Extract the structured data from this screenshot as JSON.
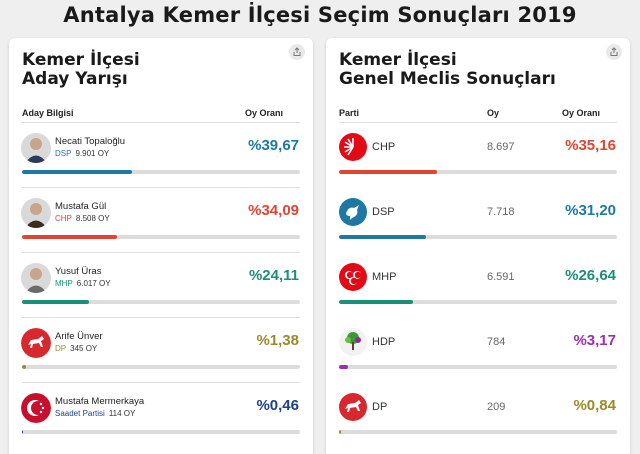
{
  "page": {
    "title": "Antalya Kemer İlçesi Seçim Sonuçları 2019"
  },
  "left_card": {
    "title_line1": "Kemer İlçesi",
    "title_line2": "Aday Yarışı",
    "col_candidate": "Aday Bilgisi",
    "col_share": "Oy Oranı",
    "share_icon": "share-icon",
    "candidates": [
      {
        "name": "Necati Topaloğlu",
        "party": "DSP",
        "votes": "9.901 OY",
        "pct": "%39,67",
        "share": 39.67,
        "color": "#1d78a4",
        "party_color": "#1d78a4"
      },
      {
        "name": "Mustafa Gül",
        "party": "CHP",
        "votes": "8.508 OY",
        "pct": "%34,09",
        "share": 34.09,
        "color": "#e04433",
        "party_color": "#e04433"
      },
      {
        "name": "Yusuf Üras",
        "party": "MHP",
        "votes": "6.017 OY",
        "pct": "%24,11",
        "share": 24.11,
        "color": "#1a8f7a",
        "party_color": "#1a8f7a"
      },
      {
        "name": "Arife Ünver",
        "party": "DP",
        "votes": "345 OY",
        "pct": "%1,38",
        "share": 1.38,
        "color": "#9a8a2c",
        "party_color": "#9a8a2c"
      },
      {
        "name": "Mustafa Mermerkaya",
        "party": "Saadet Partisi",
        "votes": "114 OY",
        "pct": "%0,46",
        "share": 0.46,
        "color": "#1e3f8a",
        "party_color": "#1e3f8a"
      }
    ]
  },
  "right_card": {
    "title_line1": "Kemer İlçesi",
    "title_line2": "Genel Meclis Sonuçları",
    "col_party": "Parti",
    "col_votes": "Oy",
    "col_share": "Oy Oranı",
    "share_icon": "share-icon",
    "parties": [
      {
        "name": "CHP",
        "votes": "8.697",
        "pct": "%35,16",
        "share": 35.16,
        "color": "#e04433",
        "logo": "chp-logo-icon"
      },
      {
        "name": "DSP",
        "votes": "7.718",
        "pct": "%31,20",
        "share": 31.2,
        "color": "#1d78a4",
        "logo": "dsp-logo-icon"
      },
      {
        "name": "MHP",
        "votes": "6.591",
        "pct": "%26,64",
        "share": 26.64,
        "color": "#1a8f7a",
        "logo": "mhp-logo-icon"
      },
      {
        "name": "HDP",
        "votes": "784",
        "pct": "%3,17",
        "share": 3.17,
        "color": "#9b2fb0",
        "logo": "hdp-logo-icon"
      },
      {
        "name": "DP",
        "votes": "209",
        "pct": "%0,84",
        "share": 0.84,
        "color": "#9a8a2c",
        "logo": "dp-logo-icon"
      }
    ]
  }
}
